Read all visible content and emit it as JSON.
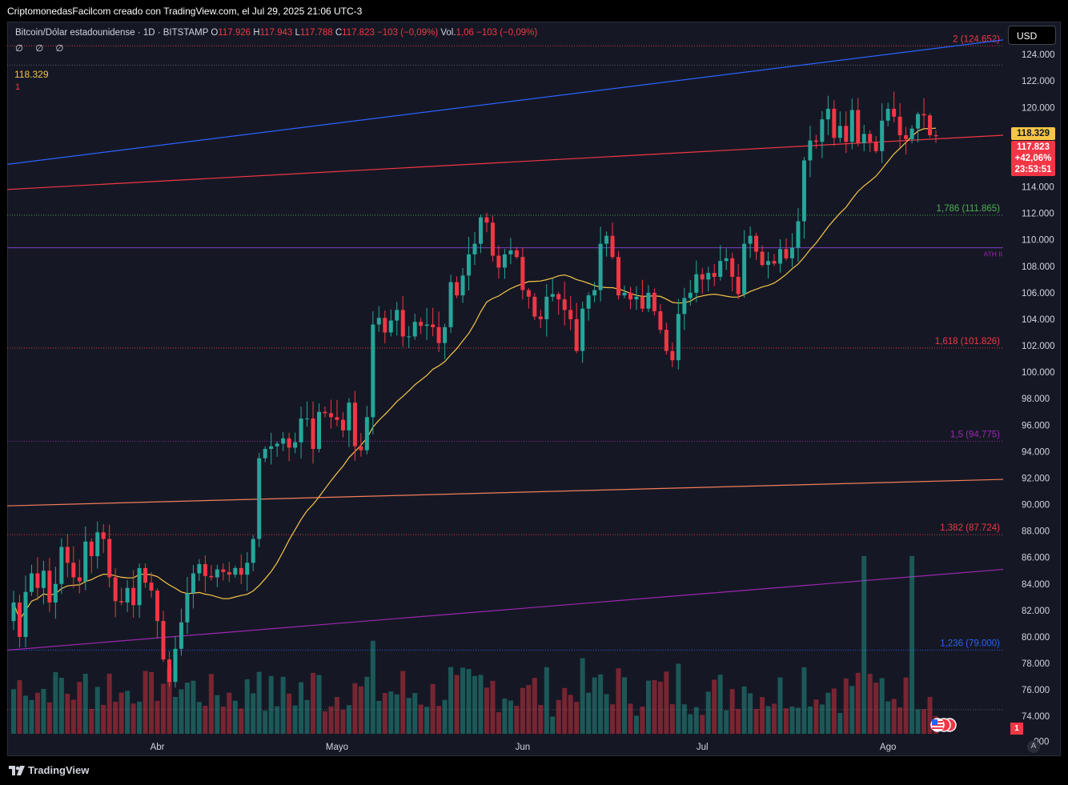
{
  "header": {
    "caption": "CriptomonedasFacilcom creado con TradingView.com, el Jul 29, 2025 21:06 UTC-3"
  },
  "legend": {
    "symbol": "Bitcoin/Dólar estadounidense · 1D · BITSTAMP",
    "o_label": "O",
    "o_value": "117.926",
    "h_label": "H",
    "h_value": "117.943",
    "l_label": "L",
    "l_value": "117.788",
    "c_label": "C",
    "c_value": "117.823",
    "change": "−103 (−0,09%)",
    "vol_label": "Vol.",
    "vol_value": "1,06",
    "vol_change": "−103 (−0,09%)",
    "indicators_row": "∅ ∅ ∅",
    "ma_value": "118.329",
    "ma_sub": "1"
  },
  "currency_button": "USD",
  "price_badges": {
    "ma": "118.329",
    "last": "117.823",
    "change_pct": "+42,06%",
    "countdown": "23:53:51",
    "volume": "1"
  },
  "footer": {
    "brand": "TradingView",
    "auto_button": "A"
  },
  "colors": {
    "background": "#151824",
    "up": "#26a69a",
    "down": "#f23645",
    "ma": "#f7c548",
    "blue_line": "#2962ff",
    "grid": "#2a2e39"
  },
  "chart_data": {
    "type": "candlestick",
    "title": "Bitcoin/Dólar estadounidense · 1D · BITSTAMP",
    "x_tick_labels": [
      "Abr",
      "Mayo",
      "Jun",
      "Jul",
      "Ago"
    ],
    "y_tick_labels": [
      "124.000",
      "122.000",
      "120.000",
      "118.000",
      "116.000",
      "114.000",
      "112.000",
      "110.000",
      "108.000",
      "106.000",
      "104.000",
      "102.000",
      "100.000",
      "98.000",
      "96.000",
      "94.000",
      "92.000",
      "90.000",
      "88.000",
      "86.000",
      "84.000",
      "82.000",
      "80.000",
      "78.000",
      "76.000",
      "74.000"
    ],
    "y_last_tick": ".000",
    "ylim": [
      72500,
      126000
    ],
    "fib_levels": [
      {
        "label": "2 (124.652)",
        "value": 124652,
        "color": "#f23645"
      },
      {
        "label": "1,786 (111.865)",
        "value": 111865,
        "color": "#4caf50"
      },
      {
        "label": "1,618 (101.826)",
        "value": 101826,
        "color": "#f23645"
      },
      {
        "label": "1,5 (94.775)",
        "value": 94775,
        "color": "#9c27b0"
      },
      {
        "label": "1,382 (87.724)",
        "value": 87724,
        "color": "#f23645"
      },
      {
        "label": "1,236 (79.000)",
        "value": 79000,
        "color": "#2962ff"
      }
    ],
    "extra_levels": [
      {
        "value": 123200,
        "color": "#787b86"
      },
      {
        "value": 74500,
        "color": "#787b86"
      }
    ],
    "ath_line": {
      "label": "ATH II",
      "value": 109400
    },
    "trendlines": [
      {
        "name": "blue",
        "color": "#2962ff",
        "y_start": 115700,
        "y_end": 125100
      },
      {
        "name": "red",
        "color": "#f23645",
        "y_start": 113800,
        "y_end": 117900
      },
      {
        "name": "orange",
        "color": "#f57c5c",
        "y_start": 89900,
        "y_end": 91900
      },
      {
        "name": "purple",
        "color": "#9c27b0",
        "y_start": 79000,
        "y_end": 85100
      }
    ],
    "x_start_label_day": 8,
    "closes": [
      82600,
      80000,
      83400,
      84800,
      83700,
      85000,
      82600,
      84000,
      86800,
      85600,
      84500,
      84200,
      87200,
      86100,
      87900,
      87400,
      84500,
      82700,
      82600,
      83700,
      82400,
      85200,
      84100,
      83500,
      81200,
      78300,
      76600,
      79100,
      81100,
      83300,
      84800,
      85500,
      84600,
      84500,
      85100,
      84900,
      84700,
      85200,
      84700,
      85600,
      87400,
      93500,
      94200,
      94400,
      94600,
      95000,
      94300,
      94700,
      96500,
      96500,
      94200,
      97000,
      96900,
      96600,
      96400,
      95600,
      97700,
      94400,
      94100,
      96600,
      103600,
      104100,
      103000,
      103900,
      104700,
      102700,
      102700,
      103800,
      103500,
      103600,
      103400,
      102200,
      103400,
      106800,
      105800,
      107300,
      108900,
      109700,
      111700,
      111300,
      108800,
      107900,
      108900,
      109200,
      108700,
      106200,
      105700,
      104200,
      104000,
      105700,
      105900,
      105500,
      104700,
      104000,
      101600,
      104800,
      105800,
      106200,
      109700,
      110300,
      108700,
      105800,
      106000,
      105500,
      105700,
      104800,
      106000,
      104600,
      103200,
      101600,
      100900,
      104400,
      105600,
      106000,
      107400,
      107000,
      107500,
      107200,
      108400,
      108600,
      107200,
      105900,
      109700,
      110300,
      109100,
      108100,
      108400,
      108200,
      109300,
      108600,
      109400,
      111400,
      116000,
      117500,
      117400,
      119100,
      119900,
      117700,
      118600,
      117400,
      119800,
      117300,
      118000,
      117400,
      116700,
      119000,
      119900,
      119300,
      117900,
      117600,
      118400,
      119500,
      119400,
      117900,
      117823
    ],
    "opens_first": 81200
  }
}
